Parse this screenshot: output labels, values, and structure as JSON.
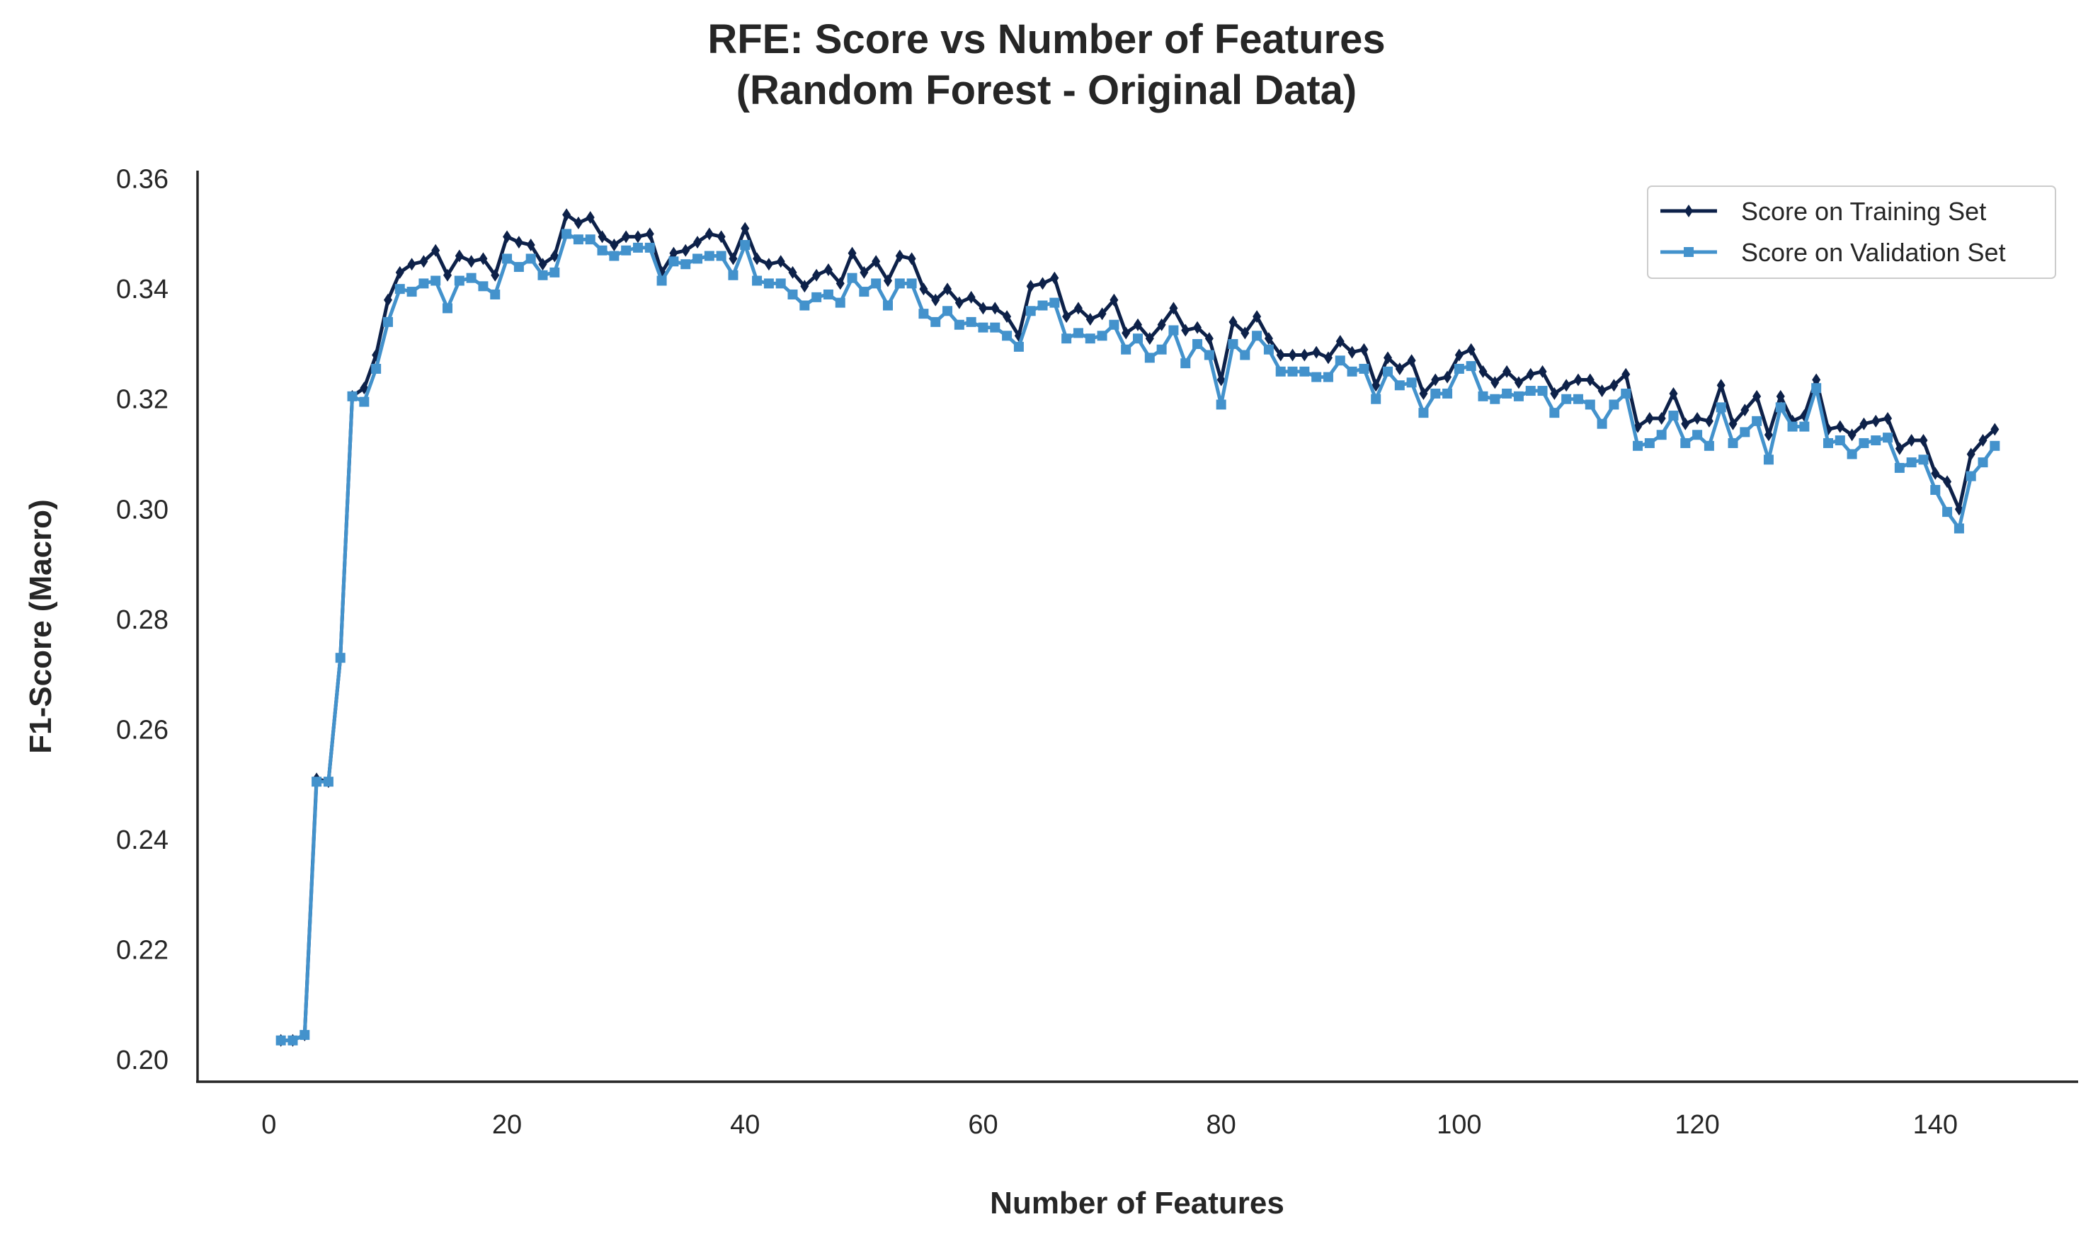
{
  "chart_data": {
    "type": "line",
    "title": [
      "RFE: Score vs Number of Features",
      "(Random Forest - Original Data)"
    ],
    "xlabel": "Number of Features",
    "ylabel": "F1-Score (Macro)",
    "xlim": [
      -6,
      152
    ],
    "ylim": [
      0.196,
      0.3615
    ],
    "xticks": [
      0,
      20,
      40,
      60,
      80,
      100,
      120,
      140
    ],
    "yticks": [
      0.2,
      0.22,
      0.24,
      0.26,
      0.28,
      0.3,
      0.32,
      0.34,
      0.36
    ],
    "ytick_decimals": 2,
    "grid": false,
    "legend_position": "top-right",
    "x": [
      1,
      2,
      3,
      4,
      5,
      6,
      7,
      8,
      9,
      10,
      11,
      12,
      13,
      14,
      15,
      16,
      17,
      18,
      19,
      20,
      21,
      22,
      23,
      24,
      25,
      26,
      27,
      28,
      29,
      30,
      31,
      32,
      33,
      34,
      35,
      36,
      37,
      38,
      39,
      40,
      41,
      42,
      43,
      44,
      45,
      46,
      47,
      48,
      49,
      50,
      51,
      52,
      53,
      54,
      55,
      56,
      57,
      58,
      59,
      60,
      61,
      62,
      63,
      64,
      65,
      66,
      67,
      68,
      69,
      70,
      71,
      72,
      73,
      74,
      75,
      76,
      77,
      78,
      79,
      80,
      81,
      82,
      83,
      84,
      85,
      86,
      87,
      88,
      89,
      90,
      91,
      92,
      93,
      94,
      95,
      96,
      97,
      98,
      99,
      100,
      101,
      102,
      103,
      104,
      105,
      106,
      107,
      108,
      109,
      110,
      111,
      112,
      113,
      114,
      115,
      116,
      117,
      118,
      119,
      120,
      121,
      122,
      123,
      124,
      125,
      126,
      127,
      128,
      129,
      130,
      131,
      132,
      133,
      134,
      135,
      136,
      137,
      138,
      139,
      140,
      141,
      142,
      143,
      144,
      145
    ],
    "series": [
      {
        "name": "Score on Training Set",
        "color": "#0d2149",
        "marker": "diamond",
        "values": [
          0.2035,
          0.2035,
          0.2045,
          0.251,
          0.2505,
          0.273,
          0.3205,
          0.322,
          0.328,
          0.338,
          0.343,
          0.3445,
          0.345,
          0.347,
          0.3425,
          0.346,
          0.345,
          0.3455,
          0.3425,
          0.3495,
          0.3485,
          0.348,
          0.3445,
          0.346,
          0.3535,
          0.352,
          0.353,
          0.3495,
          0.348,
          0.3495,
          0.3495,
          0.35,
          0.343,
          0.3465,
          0.347,
          0.3485,
          0.35,
          0.3495,
          0.3455,
          0.351,
          0.3455,
          0.3445,
          0.345,
          0.343,
          0.3405,
          0.3425,
          0.3435,
          0.341,
          0.3465,
          0.343,
          0.345,
          0.3415,
          0.346,
          0.3455,
          0.34,
          0.338,
          0.34,
          0.3375,
          0.3385,
          0.3365,
          0.3365,
          0.335,
          0.3315,
          0.3405,
          0.341,
          0.342,
          0.335,
          0.3365,
          0.3345,
          0.3355,
          0.338,
          0.332,
          0.3335,
          0.331,
          0.3335,
          0.3365,
          0.3325,
          0.333,
          0.331,
          0.3235,
          0.334,
          0.332,
          0.335,
          0.331,
          0.328,
          0.328,
          0.328,
          0.3285,
          0.3275,
          0.3305,
          0.3285,
          0.329,
          0.3225,
          0.3275,
          0.3255,
          0.327,
          0.321,
          0.3235,
          0.324,
          0.328,
          0.329,
          0.325,
          0.323,
          0.325,
          0.323,
          0.3245,
          0.325,
          0.321,
          0.3225,
          0.3235,
          0.3235,
          0.3215,
          0.3225,
          0.3245,
          0.315,
          0.3165,
          0.3165,
          0.321,
          0.3155,
          0.3165,
          0.316,
          0.3225,
          0.3155,
          0.318,
          0.3205,
          0.3135,
          0.3205,
          0.316,
          0.317,
          0.3235,
          0.3145,
          0.315,
          0.3135,
          0.3155,
          0.316,
          0.3165,
          0.311,
          0.3125,
          0.3125,
          0.3065,
          0.305,
          0.3,
          0.31,
          0.3125,
          0.3145
        ]
      },
      {
        "name": "Score on Validation Set",
        "color": "#4392cc",
        "marker": "square",
        "values": [
          0.2035,
          0.2035,
          0.2045,
          0.2505,
          0.2505,
          0.273,
          0.3205,
          0.3195,
          0.3255,
          0.334,
          0.34,
          0.3395,
          0.341,
          0.3415,
          0.3365,
          0.3415,
          0.342,
          0.3405,
          0.339,
          0.3455,
          0.344,
          0.3455,
          0.3425,
          0.343,
          0.35,
          0.349,
          0.349,
          0.347,
          0.346,
          0.347,
          0.3475,
          0.3475,
          0.3415,
          0.345,
          0.3445,
          0.3455,
          0.346,
          0.346,
          0.3425,
          0.348,
          0.3415,
          0.341,
          0.341,
          0.339,
          0.337,
          0.3385,
          0.339,
          0.3375,
          0.342,
          0.3395,
          0.341,
          0.337,
          0.341,
          0.341,
          0.3355,
          0.334,
          0.336,
          0.3335,
          0.334,
          0.333,
          0.333,
          0.3315,
          0.3295,
          0.336,
          0.337,
          0.3375,
          0.331,
          0.332,
          0.331,
          0.3315,
          0.3335,
          0.329,
          0.331,
          0.3275,
          0.329,
          0.3325,
          0.3265,
          0.33,
          0.328,
          0.319,
          0.33,
          0.328,
          0.3315,
          0.329,
          0.325,
          0.325,
          0.325,
          0.324,
          0.324,
          0.327,
          0.325,
          0.3255,
          0.32,
          0.325,
          0.3225,
          0.323,
          0.3175,
          0.321,
          0.321,
          0.3255,
          0.326,
          0.3205,
          0.32,
          0.321,
          0.3205,
          0.3215,
          0.3215,
          0.3175,
          0.32,
          0.32,
          0.319,
          0.3155,
          0.319,
          0.321,
          0.3115,
          0.312,
          0.3135,
          0.317,
          0.312,
          0.3135,
          0.3115,
          0.3185,
          0.312,
          0.314,
          0.316,
          0.309,
          0.3185,
          0.315,
          0.315,
          0.322,
          0.312,
          0.3125,
          0.31,
          0.312,
          0.3125,
          0.313,
          0.3075,
          0.3085,
          0.309,
          0.3035,
          0.2995,
          0.2965,
          0.306,
          0.3085,
          0.3115
        ]
      }
    ]
  }
}
